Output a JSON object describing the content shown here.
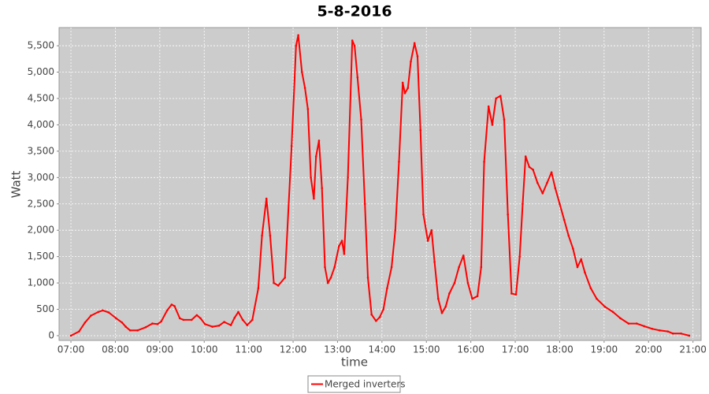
{
  "chart_data": {
    "type": "line",
    "title": "5-8-2016",
    "x_label": "time",
    "y_label": "Watt",
    "x": [
      "07:00",
      "07:11",
      "07:19",
      "07:27",
      "07:37",
      "07:43",
      "07:51",
      "08:01",
      "08:09",
      "08:14",
      "08:20",
      "08:30",
      "08:41",
      "08:50",
      "08:57",
      "09:02",
      "09:10",
      "09:16",
      "09:20",
      "09:27",
      "09:32",
      "09:43",
      "09:50",
      "09:55",
      "10:01",
      "10:11",
      "10:20",
      "10:27",
      "10:36",
      "10:41",
      "10:46",
      "10:52",
      "10:58",
      "11:05",
      "11:13",
      "11:18",
      "11:24",
      "11:29",
      "11:34",
      "11:40",
      "11:49",
      "11:58",
      "12:04",
      "12:07",
      "12:12",
      "12:16",
      "12:20",
      "12:24",
      "12:28",
      "12:31",
      "12:35",
      "12:39",
      "12:43",
      "12:47",
      "12:51",
      "12:56",
      "13:02",
      "13:06",
      "13:09",
      "13:14",
      "13:20",
      "13:23",
      "13:27",
      "13:32",
      "13:37",
      "13:41",
      "13:46",
      "13:52",
      "13:57",
      "14:02",
      "14:07",
      "14:13",
      "14:18",
      "14:23",
      "14:28",
      "14:31",
      "14:35",
      "14:39",
      "14:44",
      "14:48",
      "14:52",
      "14:56",
      "15:02",
      "15:07",
      "15:11",
      "15:16",
      "15:21",
      "15:26",
      "15:31",
      "15:38",
      "15:44",
      "15:50",
      "15:56",
      "16:02",
      "16:09",
      "16:14",
      "16:18",
      "16:24",
      "16:29",
      "16:34",
      "16:40",
      "16:45",
      "16:50",
      "16:55",
      "17:01",
      "17:06",
      "17:10",
      "17:14",
      "17:19",
      "17:24",
      "17:30",
      "17:37",
      "17:43",
      "17:49",
      "17:54",
      "18:00",
      "18:06",
      "18:12",
      "18:18",
      "18:24",
      "18:29",
      "18:34",
      "18:42",
      "18:50",
      "19:01",
      "19:12",
      "19:22",
      "19:33",
      "19:44",
      "19:54",
      "20:05",
      "20:15",
      "20:26",
      "20:33",
      "20:44",
      "20:55"
    ],
    "series": [
      {
        "name": "Merged inverters",
        "color": "#ff0000",
        "values": [
          0,
          80,
          250,
          380,
          450,
          480,
          440,
          330,
          250,
          170,
          100,
          100,
          160,
          230,
          220,
          270,
          480,
          590,
          560,
          330,
          300,
          300,
          390,
          330,
          220,
          170,
          190,
          260,
          200,
          340,
          450,
          300,
          200,
          300,
          900,
          1900,
          2600,
          1900,
          1000,
          950,
          1100,
          3600,
          5500,
          5700,
          5000,
          4700,
          4300,
          3000,
          2600,
          3400,
          3700,
          2800,
          1300,
          1000,
          1100,
          1300,
          1700,
          1800,
          1550,
          3000,
          5600,
          5500,
          4900,
          4100,
          2500,
          1100,
          400,
          280,
          350,
          500,
          900,
          1300,
          2000,
          3300,
          4800,
          4600,
          4700,
          5200,
          5550,
          5300,
          3900,
          2300,
          1800,
          2000,
          1400,
          700,
          430,
          550,
          800,
          1000,
          1300,
          1520,
          1000,
          700,
          750,
          1300,
          3300,
          4350,
          4000,
          4500,
          4550,
          4100,
          2300,
          800,
          780,
          1500,
          2500,
          3400,
          3200,
          3150,
          2900,
          2700,
          2900,
          3100,
          2800,
          2500,
          2200,
          1900,
          1650,
          1300,
          1450,
          1200,
          900,
          700,
          550,
          450,
          330,
          230,
          230,
          180,
          130,
          100,
          80,
          40,
          40,
          0
        ]
      }
    ],
    "xlim": [
      "06:44",
      "21:11"
    ],
    "xticks": [
      "07:00",
      "08:00",
      "09:00",
      "10:00",
      "11:00",
      "12:00",
      "13:00",
      "14:00",
      "15:00",
      "16:00",
      "17:00",
      "18:00",
      "19:00",
      "20:00",
      "21:00"
    ],
    "ylim": [
      -90,
      5845
    ],
    "yticks": [
      0,
      500,
      {
        "value": 1000,
        "label": "1,000"
      },
      {
        "value": 1500,
        "label": "1,500"
      },
      {
        "value": 2000,
        "label": "2,000"
      },
      {
        "value": 2500,
        "label": "2,500"
      },
      {
        "value": 3000,
        "label": "3,000"
      },
      {
        "value": 3500,
        "label": "3,500"
      },
      {
        "value": 4000,
        "label": "4,000"
      },
      {
        "value": 4500,
        "label": "4,500"
      },
      {
        "value": 5000,
        "label": "5,000"
      },
      {
        "value": 5500,
        "label": "5,500"
      }
    ],
    "grid": true,
    "legend": "bottom"
  }
}
